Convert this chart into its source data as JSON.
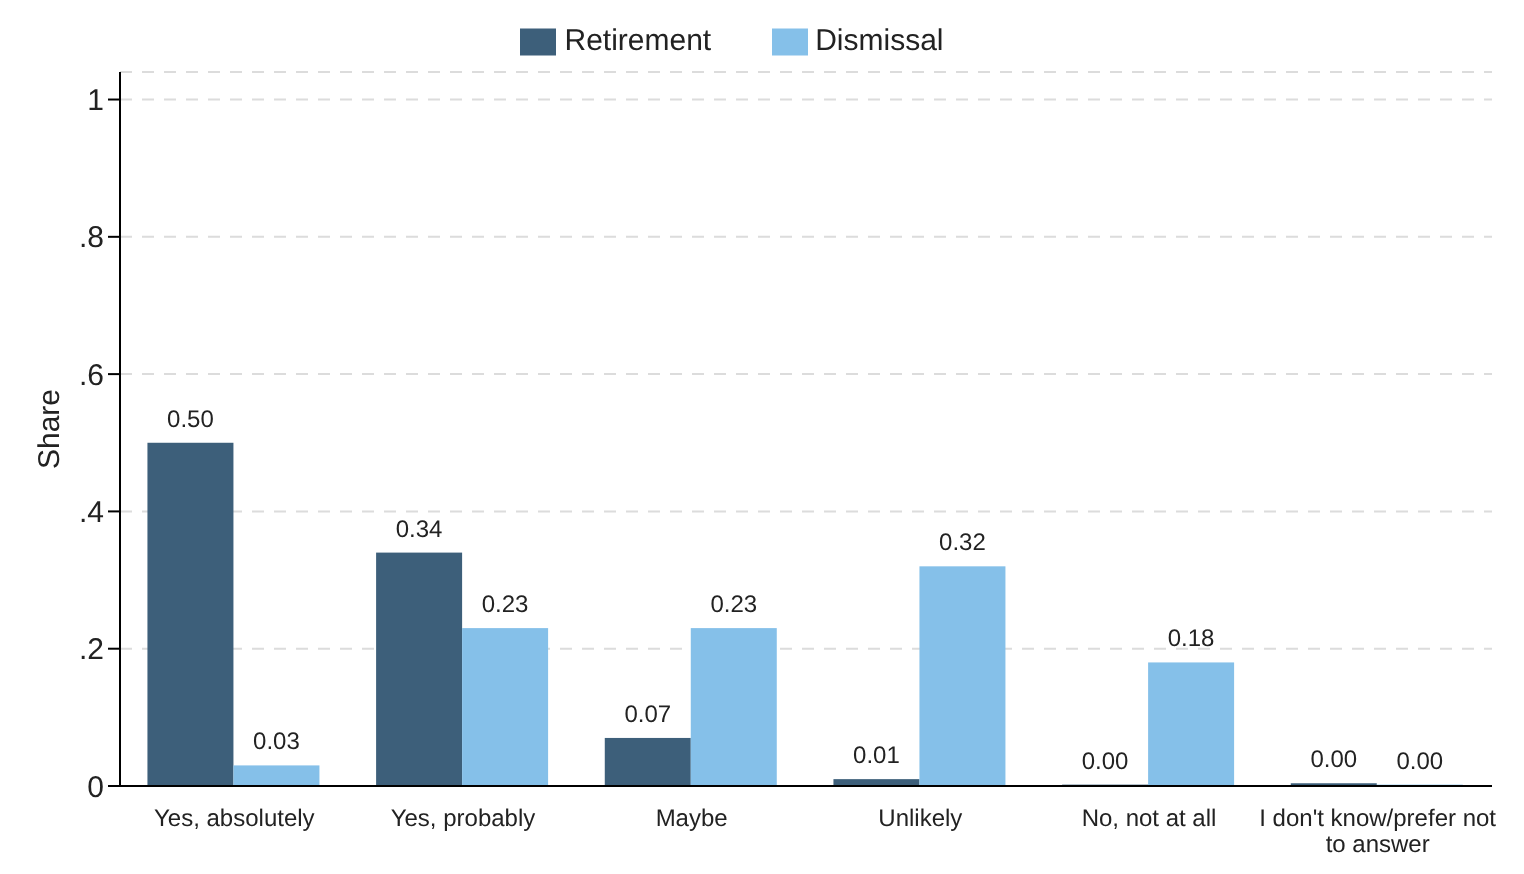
{
  "chart_data": {
    "type": "bar",
    "ylabel": "Share",
    "categories": [
      "Yes, absolutely",
      "Yes, probably",
      "Maybe",
      "Unlikely",
      "No, not at all",
      "I don't know/prefer not to answer"
    ],
    "series": [
      {
        "name": "Retirement",
        "color": "#3d5f7a",
        "values": [
          0.5,
          0.34,
          0.07,
          0.01,
          0.002,
          0.004
        ],
        "value_labels": [
          "0.50",
          "0.34",
          "0.07",
          "0.01",
          "0.00",
          "0.00"
        ]
      },
      {
        "name": "Dismissal",
        "color": "#85c0e9",
        "values": [
          0.03,
          0.23,
          0.23,
          0.32,
          0.18,
          0.002
        ],
        "value_labels": [
          "0.03",
          "0.23",
          "0.23",
          "0.32",
          "0.18",
          "0.00"
        ]
      }
    ],
    "ylim": [
      0,
      1.04
    ],
    "yticks": [
      0,
      {
        "value": 0.2,
        "label": ".2"
      },
      {
        "value": 0.4,
        "label": ".4"
      },
      {
        "value": 0.6,
        "label": ".6"
      },
      {
        "value": 0.8,
        "label": ".8"
      },
      1
    ],
    "grid": "y",
    "legend": "top"
  }
}
